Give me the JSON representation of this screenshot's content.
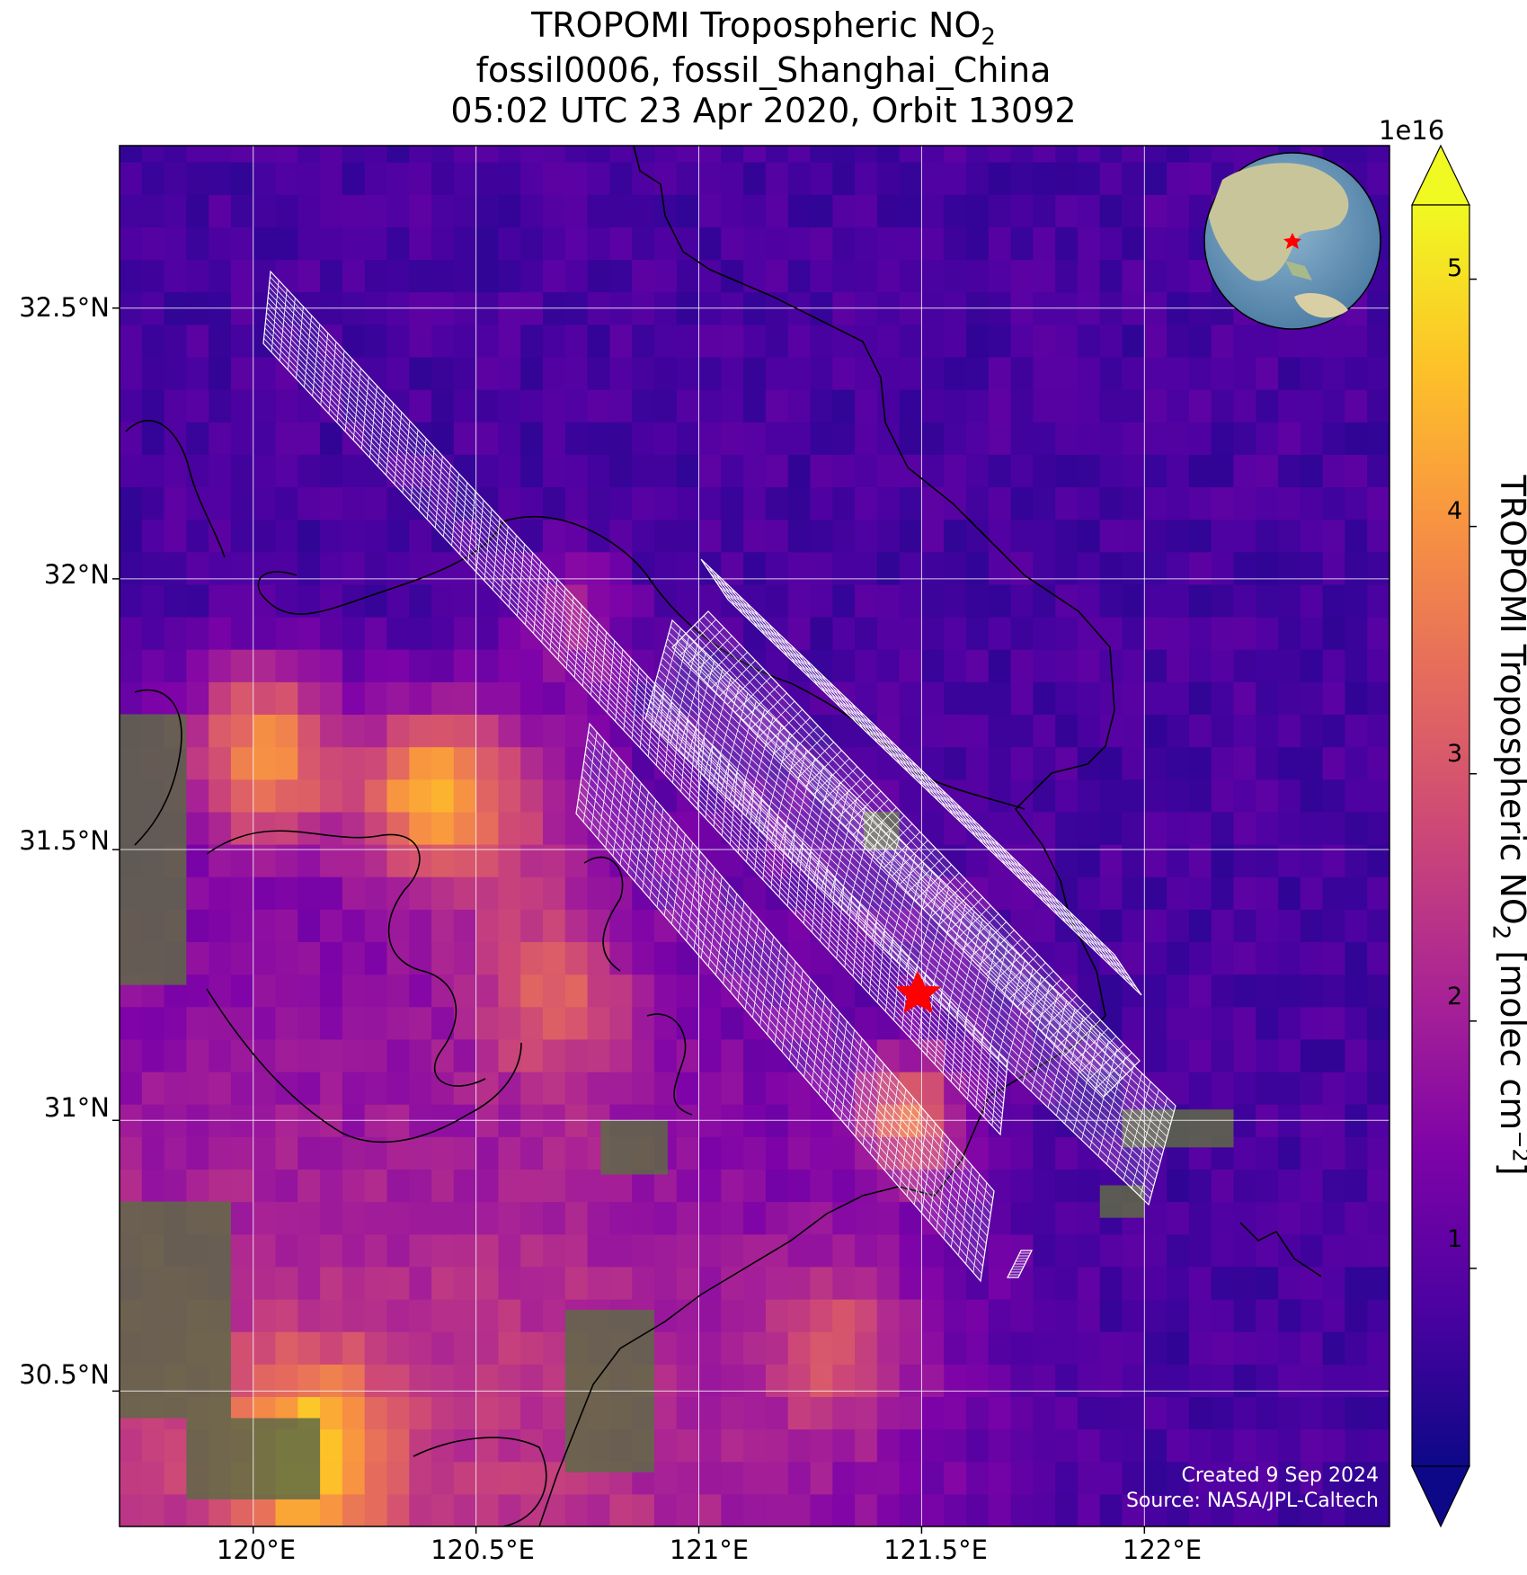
{
  "title": {
    "line1_main": "TROPOMI Tropospheric NO",
    "line1_sub": "2",
    "line2": "fossil0006, fossil_Shanghai_China",
    "line3": "05:02 UTC 23 Apr 2020, Orbit 13092"
  },
  "axes": {
    "x_ticks": [
      "120°E",
      "120.5°E",
      "121°E",
      "121.5°E",
      "122°E"
    ],
    "y_ticks": [
      "32.5°N",
      "32°N",
      "31.5°N",
      "31°N",
      "30.5°N"
    ],
    "lon_range": [
      119.7,
      122.55
    ],
    "lat_range": [
      30.25,
      32.8
    ]
  },
  "colorbar": {
    "exponent": "1e16",
    "ticks": [
      "1",
      "2",
      "3",
      "4",
      "5"
    ],
    "label_main": "TROPOMI Tropospheric NO",
    "label_sub": "2",
    "label_units_pre": " [molec cm",
    "label_units_sup": "−2",
    "label_units_post": "]",
    "colormap": "plasma",
    "range": [
      0.2,
      5.3
    ]
  },
  "target": {
    "name": "fossil_Shanghai_China",
    "marker": "red-star",
    "lon": 121.47,
    "lat": 31.23
  },
  "credits": {
    "created": "Created 9 Sep 2024",
    "source": "Source: NASA/JPL-Caltech"
  },
  "colors": {
    "marker": "#ff0000",
    "swath": "#ffffff",
    "coast": "#000000"
  }
}
